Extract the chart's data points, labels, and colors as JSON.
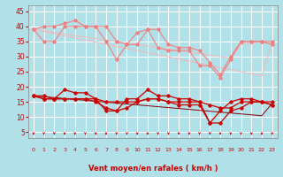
{
  "title": "",
  "xlabel": "Vent moyen/en rafales ( km/h )",
  "ylabel": "",
  "background_color": "#b0e0e8",
  "grid_color": "#ffffff",
  "xlim": [
    -0.5,
    23.5
  ],
  "ylim": [
    3,
    47
  ],
  "yticks": [
    5,
    10,
    15,
    20,
    25,
    30,
    35,
    40,
    45
  ],
  "xticks": [
    0,
    1,
    2,
    3,
    4,
    5,
    6,
    7,
    8,
    9,
    10,
    11,
    12,
    13,
    14,
    15,
    16,
    17,
    18,
    19,
    20,
    21,
    22,
    23
  ],
  "hours": [
    0,
    1,
    2,
    3,
    4,
    5,
    6,
    7,
    8,
    9,
    10,
    11,
    12,
    13,
    14,
    15,
    16,
    17,
    18,
    19,
    20,
    21,
    22,
    23
  ],
  "series_light": [
    [
      39,
      35,
      35,
      40,
      40,
      40,
      40,
      35,
      29,
      34,
      38,
      39,
      33,
      32,
      32,
      32,
      27,
      27,
      23,
      29,
      35,
      35,
      35,
      34
    ],
    [
      39,
      40,
      40,
      41,
      42,
      40,
      40,
      40,
      35,
      34,
      34,
      39,
      39,
      34,
      33,
      33,
      32,
      28,
      24,
      30,
      35,
      35,
      35,
      35
    ]
  ],
  "series_dark": [
    [
      17,
      16,
      16,
      19,
      18,
      18,
      16,
      12,
      12,
      16,
      16,
      19,
      17,
      17,
      16,
      16,
      15,
      8,
      12,
      15,
      16,
      16,
      15,
      15
    ],
    [
      17,
      16,
      16,
      16,
      16,
      16,
      15,
      13,
      12,
      13,
      15,
      16,
      16,
      15,
      14,
      14,
      14,
      8,
      8,
      12,
      13,
      15,
      15,
      14
    ],
    [
      17,
      17,
      16,
      16,
      16,
      16,
      16,
      15,
      15,
      15,
      15,
      16,
      16,
      15,
      15,
      15,
      15,
      14,
      13,
      13,
      15,
      15,
      15,
      14
    ]
  ],
  "series_light_trend": [
    [
      39,
      38.3,
      37.6,
      36.9,
      36.2,
      35.5,
      34.8,
      34.1,
      33.4,
      32.7,
      32.0,
      31.3,
      30.6,
      29.9,
      29.2,
      28.5,
      27.8,
      27.1,
      26.4,
      25.7,
      25.0,
      24.3,
      23.6,
      34.9
    ],
    [
      39,
      38.5,
      38.0,
      37.5,
      37.0,
      36.5,
      36.0,
      35.5,
      35.0,
      34.5,
      34.0,
      33.5,
      33.0,
      32.5,
      32.0,
      31.5,
      31.0,
      30.5,
      30.0,
      29.5,
      34.0,
      34.5,
      35.0,
      34.5
    ]
  ],
  "series_dark_trend": [
    [
      17,
      16.7,
      16.4,
      16.1,
      15.8,
      15.5,
      15.2,
      14.9,
      14.6,
      14.3,
      14.0,
      13.7,
      13.4,
      13.1,
      12.8,
      12.5,
      12.2,
      11.9,
      11.6,
      11.3,
      11.0,
      10.7,
      10.4,
      14.5
    ]
  ],
  "color_light": "#f08080",
  "color_dark": "#cc0000",
  "color_trend_light": "#f4b8b8",
  "color_trend_dark": "#880000",
  "arrow_color": "#cc0000",
  "xlabel_color": "#cc0000",
  "tick_color": "#cc0000"
}
